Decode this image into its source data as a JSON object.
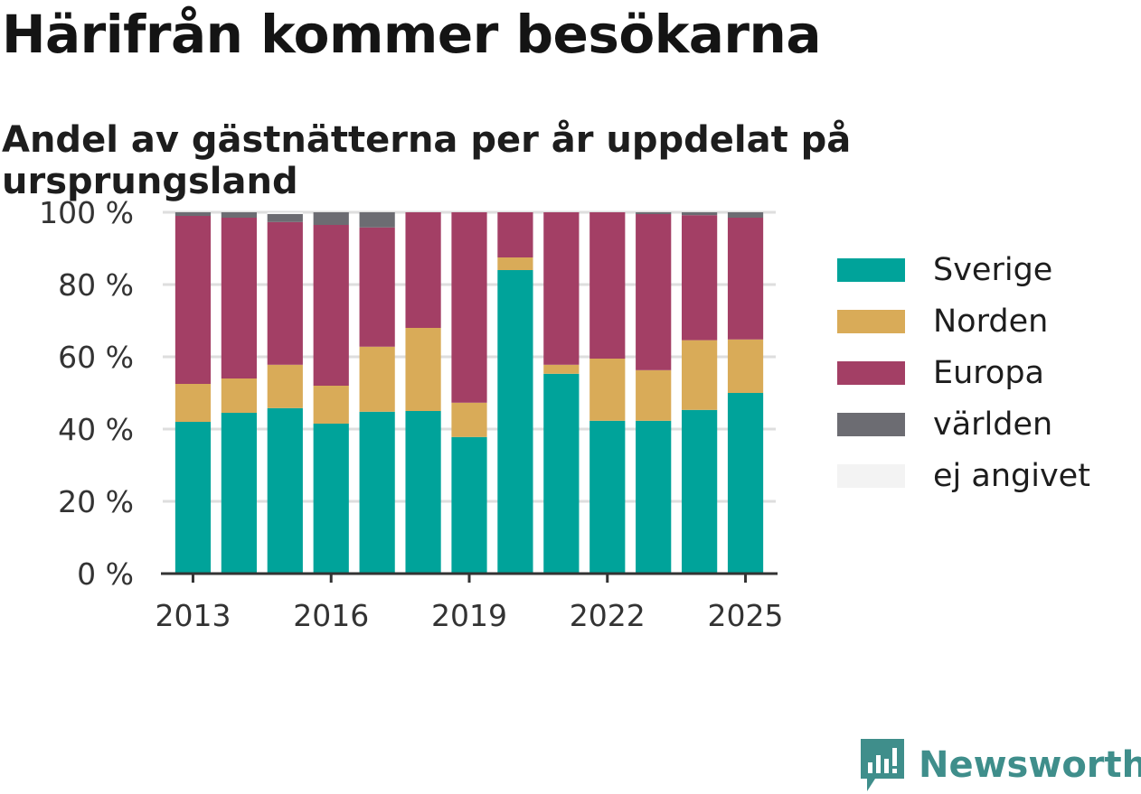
{
  "title": "Härifrån kommer besökarna",
  "subtitle": "Andel av gästnätterna per år uppdelat på ursprungsland",
  "brand": "Newsworthy",
  "colors": {
    "sverige": "#00a39a",
    "norden": "#d9ab58",
    "europa": "#a33f65",
    "varlden": "#6c6c72",
    "ej_angivet": "#f3f3f3",
    "grid": "#dedede",
    "axis": "#333333",
    "brand": "#3f8e8b"
  },
  "chart_data": {
    "type": "bar",
    "stacked": true,
    "categories": [
      "2013",
      "2014",
      "2015",
      "2016",
      "2017",
      "2018",
      "2019",
      "2020",
      "2021",
      "2022",
      "2023",
      "2024",
      "2025"
    ],
    "x_tick_labels": [
      "2013",
      "2016",
      "2019",
      "2022",
      "2025"
    ],
    "y_tick_labels": [
      "0 %",
      "20 %",
      "40 %",
      "60 %",
      "80 %",
      "100 %"
    ],
    "ylim": [
      0,
      100
    ],
    "grid": true,
    "legend_position": "right",
    "series": [
      {
        "name": "Sverige",
        "color": "#00a39a",
        "values": [
          42,
          44.5,
          45.8,
          41.5,
          44.8,
          45,
          37.8,
          84,
          55.3,
          42.3,
          42.3,
          45.3,
          50
        ]
      },
      {
        "name": "Norden",
        "color": "#d9ab58",
        "values": [
          10.5,
          9.5,
          12,
          10.5,
          18,
          23,
          9.5,
          3.5,
          2.5,
          17.2,
          14,
          19.3,
          14.8
        ]
      },
      {
        "name": "Europa",
        "color": "#a33f65",
        "values": [
          46.5,
          44.5,
          39.5,
          44.5,
          33,
          32,
          52.7,
          12.5,
          42.2,
          40.5,
          43.2,
          34.6,
          33.7
        ]
      },
      {
        "name": "världen",
        "color": "#6c6c72",
        "values": [
          1,
          1.5,
          2.2,
          3.5,
          4.2,
          0,
          0,
          0,
          0,
          0,
          0.5,
          0.8,
          1.5
        ]
      },
      {
        "name": "ej angivet",
        "color": "#f3f3f3",
        "values": [
          0,
          0,
          0.5,
          0,
          0,
          0,
          0,
          0,
          0,
          0,
          0,
          0,
          0
        ]
      }
    ]
  },
  "legend": [
    {
      "label": "Sverige",
      "color": "#00a39a"
    },
    {
      "label": "Norden",
      "color": "#d9ab58"
    },
    {
      "label": "Europa",
      "color": "#a33f65"
    },
    {
      "label": "världen",
      "color": "#6c6c72"
    },
    {
      "label": "ej angivet",
      "color": "#f3f3f3"
    }
  ]
}
